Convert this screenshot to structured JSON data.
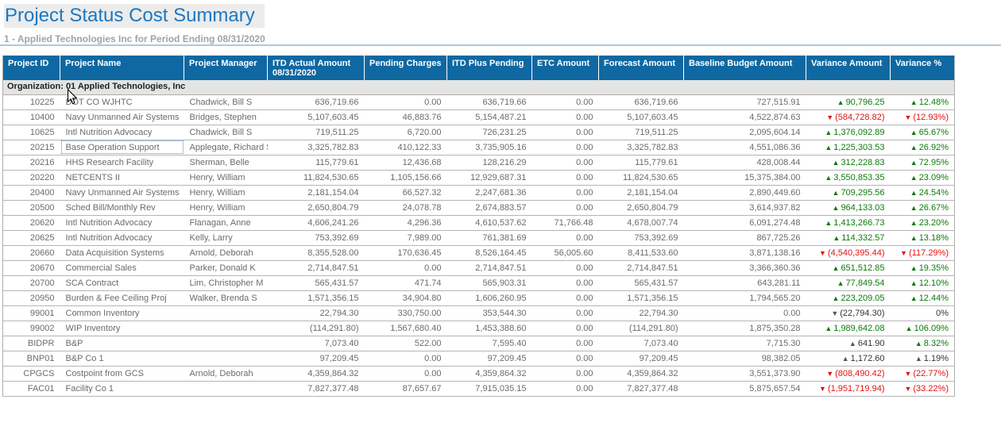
{
  "page": {
    "title": "Project Status Cost Summary",
    "subtitle": "1 - Applied Technologies Inc for Period Ending 08/31/2020"
  },
  "colors": {
    "title_blue": "#1A78C4",
    "header_bg": "#0F68A1",
    "positive_green": "#0B7B0B",
    "negative_red": "#E31212",
    "neutral_gray": "#555555"
  },
  "icons": {
    "cursor": "arrow-pointer",
    "up_arrow": "▲",
    "down_arrow": "▼"
  },
  "table": {
    "group_label": "Organization: 01 Applied Technologies, Inc",
    "columns": [
      "Project ID",
      "Project Name",
      "Project Manager",
      "ITD Actual Amount 08/31/2020",
      "Pending Charges",
      "ITD Plus Pending",
      "ETC Amount",
      "Forecast Amount",
      "Baseline Budget Amount",
      "Variance Amount",
      "Variance %"
    ],
    "rows": [
      {
        "project_id": "10225",
        "project_name": "DOT CO WJHTC",
        "project_manager": "Chadwick, Bill S",
        "itd_actual": "636,719.66",
        "pending_charges": "0.00",
        "itd_plus_pending": "636,719.66",
        "etc_amount": "0.00",
        "forecast_amount": "636,719.66",
        "baseline_budget": "727,515.91",
        "variance_amount": {
          "arrow": "▲",
          "text": "90,796.25",
          "tone": "pos"
        },
        "variance_pct": {
          "arrow": "▲",
          "text": "12.48%",
          "tone": "pos"
        }
      },
      {
        "project_id": "10400",
        "project_name": "Navy Unmanned Air Systems",
        "project_manager": "Bridges, Stephen",
        "itd_actual": "5,107,603.45",
        "pending_charges": "46,883.76",
        "itd_plus_pending": "5,154,487.21",
        "etc_amount": "0.00",
        "forecast_amount": "5,107,603.45",
        "baseline_budget": "4,522,874.63",
        "variance_amount": {
          "arrow": "▼",
          "text": "(584,728.82)",
          "tone": "neg"
        },
        "variance_pct": {
          "arrow": "▼",
          "text": "(12.93%)",
          "tone": "neg"
        }
      },
      {
        "project_id": "10625",
        "project_name": "Intl Nutrition Advocacy",
        "project_manager": "Chadwick, Bill S",
        "itd_actual": "719,511.25",
        "pending_charges": "6,720.00",
        "itd_plus_pending": "726,231.25",
        "etc_amount": "0.00",
        "forecast_amount": "719,511.25",
        "baseline_budget": "2,095,604.14",
        "variance_amount": {
          "arrow": "▲",
          "text": "1,376,092.89",
          "tone": "pos"
        },
        "variance_pct": {
          "arrow": "▲",
          "text": "65.67%",
          "tone": "pos"
        }
      },
      {
        "project_id": "20215",
        "project_name": "Base Operation Support",
        "project_manager": "Applegate, Richard S",
        "itd_actual": "3,325,782.83",
        "pending_charges": "410,122.33",
        "itd_plus_pending": "3,735,905.16",
        "etc_amount": "0.00",
        "forecast_amount": "3,325,782.83",
        "baseline_budget": "4,551,086.36",
        "variance_amount": {
          "arrow": "▲",
          "text": "1,225,303.53",
          "tone": "pos"
        },
        "variance_pct": {
          "arrow": "▲",
          "text": "26.92%",
          "tone": "pos"
        },
        "focused": true
      },
      {
        "project_id": "20216",
        "project_name": "HHS Research Facility",
        "project_manager": "Sherman, Belle",
        "itd_actual": "115,779.61",
        "pending_charges": "12,436.68",
        "itd_plus_pending": "128,216.29",
        "etc_amount": "0.00",
        "forecast_amount": "115,779.61",
        "baseline_budget": "428,008.44",
        "variance_amount": {
          "arrow": "▲",
          "text": "312,228.83",
          "tone": "pos"
        },
        "variance_pct": {
          "arrow": "▲",
          "text": "72.95%",
          "tone": "pos"
        }
      },
      {
        "project_id": "20220",
        "project_name": "NETCENTS II",
        "project_manager": "Henry, William",
        "itd_actual": "11,824,530.65",
        "pending_charges": "1,105,156.66",
        "itd_plus_pending": "12,929,687.31",
        "etc_amount": "0.00",
        "forecast_amount": "11,824,530.65",
        "baseline_budget": "15,375,384.00",
        "variance_amount": {
          "arrow": "▲",
          "text": "3,550,853.35",
          "tone": "pos"
        },
        "variance_pct": {
          "arrow": "▲",
          "text": "23.09%",
          "tone": "pos"
        }
      },
      {
        "project_id": "20400",
        "project_name": "Navy Unmanned Air Systems",
        "project_manager": "Henry, William",
        "itd_actual": "2,181,154.04",
        "pending_charges": "66,527.32",
        "itd_plus_pending": "2,247,681.36",
        "etc_amount": "0.00",
        "forecast_amount": "2,181,154.04",
        "baseline_budget": "2,890,449.60",
        "variance_amount": {
          "arrow": "▲",
          "text": "709,295.56",
          "tone": "pos"
        },
        "variance_pct": {
          "arrow": "▲",
          "text": "24.54%",
          "tone": "pos"
        }
      },
      {
        "project_id": "20500",
        "project_name": "Sched Bill/Monthly Rev",
        "project_manager": "Henry, William",
        "itd_actual": "2,650,804.79",
        "pending_charges": "24,078.78",
        "itd_plus_pending": "2,674,883.57",
        "etc_amount": "0.00",
        "forecast_amount": "2,650,804.79",
        "baseline_budget": "3,614,937.82",
        "variance_amount": {
          "arrow": "▲",
          "text": "964,133.03",
          "tone": "pos"
        },
        "variance_pct": {
          "arrow": "▲",
          "text": "26.67%",
          "tone": "pos"
        }
      },
      {
        "project_id": "20620",
        "project_name": "Intl Nutrition Advocacy",
        "project_manager": "Flanagan, Anne",
        "itd_actual": "4,606,241.26",
        "pending_charges": "4,296.36",
        "itd_plus_pending": "4,610,537.62",
        "etc_amount": "71,766.48",
        "forecast_amount": "4,678,007.74",
        "baseline_budget": "6,091,274.48",
        "variance_amount": {
          "arrow": "▲",
          "text": "1,413,266.73",
          "tone": "pos"
        },
        "variance_pct": {
          "arrow": "▲",
          "text": "23.20%",
          "tone": "pos"
        }
      },
      {
        "project_id": "20625",
        "project_name": "Intl Nutrition Advocacy",
        "project_manager": "Kelly, Larry",
        "itd_actual": "753,392.69",
        "pending_charges": "7,989.00",
        "itd_plus_pending": "761,381.69",
        "etc_amount": "0.00",
        "forecast_amount": "753,392.69",
        "baseline_budget": "867,725.26",
        "variance_amount": {
          "arrow": "▲",
          "text": "114,332.57",
          "tone": "pos"
        },
        "variance_pct": {
          "arrow": "▲",
          "text": "13.18%",
          "tone": "pos"
        }
      },
      {
        "project_id": "20660",
        "project_name": "Data Acquisition Systems",
        "project_manager": "Arnold, Deborah",
        "itd_actual": "8,355,528.00",
        "pending_charges": "170,636.45",
        "itd_plus_pending": "8,526,164.45",
        "etc_amount": "56,005.60",
        "forecast_amount": "8,411,533.60",
        "baseline_budget": "3,871,138.16",
        "variance_amount": {
          "arrow": "▼",
          "text": "(4,540,395.44)",
          "tone": "neg"
        },
        "variance_pct": {
          "arrow": "▼",
          "text": "(117.29%)",
          "tone": "neg"
        }
      },
      {
        "project_id": "20670",
        "project_name": "Commercial Sales",
        "project_manager": "Parker, Donald K",
        "itd_actual": "2,714,847.51",
        "pending_charges": "0.00",
        "itd_plus_pending": "2,714,847.51",
        "etc_amount": "0.00",
        "forecast_amount": "2,714,847.51",
        "baseline_budget": "3,366,360.36",
        "variance_amount": {
          "arrow": "▲",
          "text": "651,512.85",
          "tone": "pos"
        },
        "variance_pct": {
          "arrow": "▲",
          "text": "19.35%",
          "tone": "pos"
        }
      },
      {
        "project_id": "20700",
        "project_name": "SCA Contract",
        "project_manager": "Lim, Christopher M",
        "itd_actual": "565,431.57",
        "pending_charges": "471.74",
        "itd_plus_pending": "565,903.31",
        "etc_amount": "0.00",
        "forecast_amount": "565,431.57",
        "baseline_budget": "643,281.11",
        "variance_amount": {
          "arrow": "▲",
          "text": "77,849.54",
          "tone": "pos"
        },
        "variance_pct": {
          "arrow": "▲",
          "text": "12.10%",
          "tone": "pos"
        }
      },
      {
        "project_id": "20950",
        "project_name": "Burden & Fee Ceiling Proj",
        "project_manager": "Walker, Brenda S",
        "itd_actual": "1,571,356.15",
        "pending_charges": "34,904.80",
        "itd_plus_pending": "1,606,260.95",
        "etc_amount": "0.00",
        "forecast_amount": "1,571,356.15",
        "baseline_budget": "1,794,565.20",
        "variance_amount": {
          "arrow": "▲",
          "text": "223,209.05",
          "tone": "pos"
        },
        "variance_pct": {
          "arrow": "▲",
          "text": "12.44%",
          "tone": "pos"
        }
      },
      {
        "project_id": "99001",
        "project_name": "Common Inventory",
        "project_manager": "",
        "itd_actual": "22,794.30",
        "pending_charges": "330,750.00",
        "itd_plus_pending": "353,544.30",
        "etc_amount": "0.00",
        "forecast_amount": "22,794.30",
        "baseline_budget": "0.00",
        "variance_amount": {
          "arrow": "▼",
          "text": "(22,794.30)",
          "tone": "neutral"
        },
        "variance_pct": {
          "arrow": "",
          "text": "0%",
          "tone": "neutral"
        }
      },
      {
        "project_id": "99002",
        "project_name": "WIP Inventory",
        "project_manager": "",
        "itd_actual": "(114,291.80)",
        "pending_charges": "1,567,680.40",
        "itd_plus_pending": "1,453,388.60",
        "etc_amount": "0.00",
        "forecast_amount": "(114,291.80)",
        "baseline_budget": "1,875,350.28",
        "variance_amount": {
          "arrow": "▲",
          "text": "1,989,642.08",
          "tone": "pos"
        },
        "variance_pct": {
          "arrow": "▲",
          "text": "106.09%",
          "tone": "pos"
        }
      },
      {
        "project_id": "BIDPR",
        "project_name": "B&P",
        "project_manager": "",
        "itd_actual": "7,073.40",
        "pending_charges": "522.00",
        "itd_plus_pending": "7,595.40",
        "etc_amount": "0.00",
        "forecast_amount": "7,073.40",
        "baseline_budget": "7,715.30",
        "variance_amount": {
          "arrow": "▲",
          "text": "641.90",
          "tone": "neutral"
        },
        "variance_pct": {
          "arrow": "▲",
          "text": "8.32%",
          "tone": "pos"
        }
      },
      {
        "project_id": "BNP01",
        "project_name": "B&P Co 1",
        "project_manager": "",
        "itd_actual": "97,209.45",
        "pending_charges": "0.00",
        "itd_plus_pending": "97,209.45",
        "etc_amount": "0.00",
        "forecast_amount": "97,209.45",
        "baseline_budget": "98,382.05",
        "variance_amount": {
          "arrow": "▲",
          "text": "1,172.60",
          "tone": "neutral"
        },
        "variance_pct": {
          "arrow": "▲",
          "text": "1.19%",
          "tone": "neutral"
        }
      },
      {
        "project_id": "CPGCS",
        "project_name": "Costpoint from GCS",
        "project_manager": "Arnold, Deborah",
        "itd_actual": "4,359,864.32",
        "pending_charges": "0.00",
        "itd_plus_pending": "4,359,864.32",
        "etc_amount": "0.00",
        "forecast_amount": "4,359,864.32",
        "baseline_budget": "3,551,373.90",
        "variance_amount": {
          "arrow": "▼",
          "text": "(808,490.42)",
          "tone": "neg"
        },
        "variance_pct": {
          "arrow": "▼",
          "text": "(22.77%)",
          "tone": "neg"
        }
      },
      {
        "project_id": "FAC01",
        "project_name": "Facility Co 1",
        "project_manager": "",
        "itd_actual": "7,827,377.48",
        "pending_charges": "87,657.67",
        "itd_plus_pending": "7,915,035.15",
        "etc_amount": "0.00",
        "forecast_amount": "7,827,377.48",
        "baseline_budget": "5,875,657.54",
        "variance_amount": {
          "arrow": "▼",
          "text": "(1,951,719.94)",
          "tone": "neg"
        },
        "variance_pct": {
          "arrow": "▼",
          "text": "(33.22%)",
          "tone": "neg"
        }
      }
    ]
  }
}
